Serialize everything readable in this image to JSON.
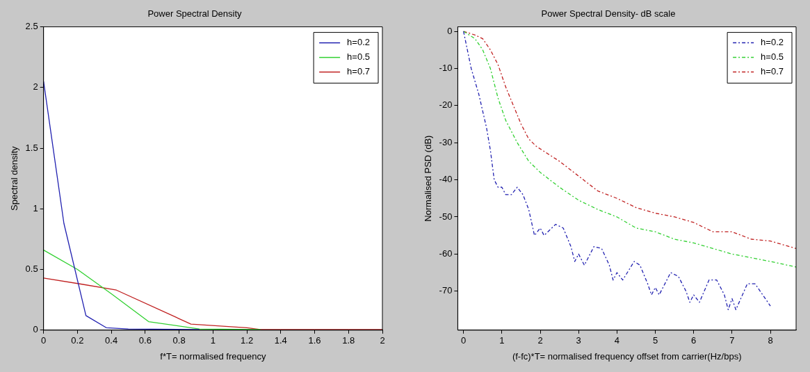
{
  "chart_data": [
    {
      "type": "line",
      "title": "Power Spectral Density",
      "xlabel": "f*T= normalised frequency",
      "ylabel": "Spectral density",
      "xlim": [
        0,
        2
      ],
      "xticks": [
        0,
        0.2,
        0.4,
        0.6,
        0.8,
        1,
        1.2,
        1.4,
        1.6,
        1.8,
        2
      ],
      "ylim": [
        0,
        2.5
      ],
      "yticks": [
        0,
        0.5,
        1,
        1.5,
        2,
        2.5
      ],
      "legend": "top right",
      "line_style": "solid",
      "series": [
        {
          "name": "h=0.2",
          "color": "#2020b0",
          "x": [
            0,
            0.12,
            0.25,
            0.37,
            0.5,
            0.92
          ],
          "values": [
            2.05,
            0.88,
            0.12,
            0.02,
            0.01,
            0.005
          ]
        },
        {
          "name": "h=0.5",
          "color": "#30d030",
          "x": [
            0,
            0.2,
            0.4,
            0.62,
            0.92,
            1.28
          ],
          "values": [
            0.66,
            0.5,
            0.3,
            0.07,
            0.01,
            0.005
          ]
        },
        {
          "name": "h=0.7",
          "color": "#c02020",
          "x": [
            0,
            0.22,
            0.43,
            0.87,
            1.2,
            1.28,
            2
          ],
          "values": [
            0.43,
            0.38,
            0.33,
            0.05,
            0.02,
            0.005,
            0.005
          ]
        }
      ]
    },
    {
      "type": "line",
      "title": "Power Spectral Density- dB scale",
      "xlabel": "(f-fc)*T= normalised frequency offset from carrier(Hz/bps)",
      "ylabel": "Normalised PSD (dB)",
      "xlim": [
        -0.15,
        8.67
      ],
      "xticks": [
        0,
        1,
        2,
        3,
        4,
        5,
        6,
        7,
        8
      ],
      "ylim": [
        -80.5,
        1.2
      ],
      "yticks": [
        0,
        -10,
        -20,
        -30,
        -40,
        -50,
        -60,
        -70
      ],
      "legend": "top right",
      "line_style": "dashed",
      "series": [
        {
          "name": "h=0.2",
          "color": "#2020b0",
          "x": [
            0,
            0.1,
            0.2,
            0.4,
            0.6,
            0.7,
            0.8,
            0.9,
            1,
            1.1,
            1.25,
            1.4,
            1.55,
            1.7,
            1.85,
            2,
            2.1,
            2.4,
            2.6,
            2.8,
            2.9,
            3,
            3.15,
            3.4,
            3.6,
            3.8,
            3.9,
            4,
            4.15,
            4.45,
            4.6,
            4.8,
            4.9,
            5,
            5.1,
            5.4,
            5.6,
            5.8,
            5.9,
            6,
            6.15,
            6.4,
            6.6,
            6.8,
            6.9,
            7,
            7.1,
            7.4,
            7.6,
            7.8,
            8
          ],
          "values": [
            0,
            -5,
            -10,
            -17,
            -26,
            -32,
            -40,
            -42,
            -42,
            -44,
            -44,
            -42,
            -44,
            -48,
            -55,
            -53,
            -55,
            -52,
            -53,
            -58,
            -62,
            -60,
            -63,
            -58,
            -58.5,
            -63,
            -67,
            -65,
            -67,
            -62,
            -63,
            -68,
            -71,
            -69,
            -71,
            -65,
            -66,
            -70,
            -73,
            -71,
            -73,
            -67,
            -67,
            -71,
            -75,
            -72,
            -75,
            -68,
            -68,
            -71,
            -74
          ]
        },
        {
          "name": "h=0.5",
          "color": "#30d030",
          "x": [
            0,
            0.3,
            0.5,
            0.7,
            0.9,
            1.1,
            1.4,
            1.7,
            2,
            2.5,
            3,
            3.5,
            4,
            4.5,
            5,
            5.5,
            6,
            6.5,
            7,
            7.5,
            8,
            8.67
          ],
          "values": [
            0,
            -2,
            -5,
            -10,
            -18,
            -24,
            -30,
            -35,
            -38,
            -42,
            -45.5,
            -48,
            -50,
            -53,
            -54,
            -56,
            -57,
            -58.5,
            -60,
            -61,
            -62,
            -63.5
          ]
        },
        {
          "name": "h=0.7",
          "color": "#c02020",
          "x": [
            0,
            0.3,
            0.5,
            0.7,
            0.9,
            1.1,
            1.3,
            1.5,
            1.7,
            1.9,
            2.2,
            2.5,
            3,
            3.5,
            4,
            4.5,
            5,
            5.5,
            6,
            6.5,
            7,
            7.5,
            8,
            8.67
          ],
          "values": [
            0,
            -1,
            -2,
            -5,
            -9,
            -15,
            -20,
            -25,
            -29,
            -31,
            -33,
            -35,
            -39,
            -43,
            -45,
            -47.5,
            -49,
            -50,
            -51.5,
            -54,
            -54,
            -56,
            -56.5,
            -58.5
          ]
        }
      ]
    }
  ]
}
